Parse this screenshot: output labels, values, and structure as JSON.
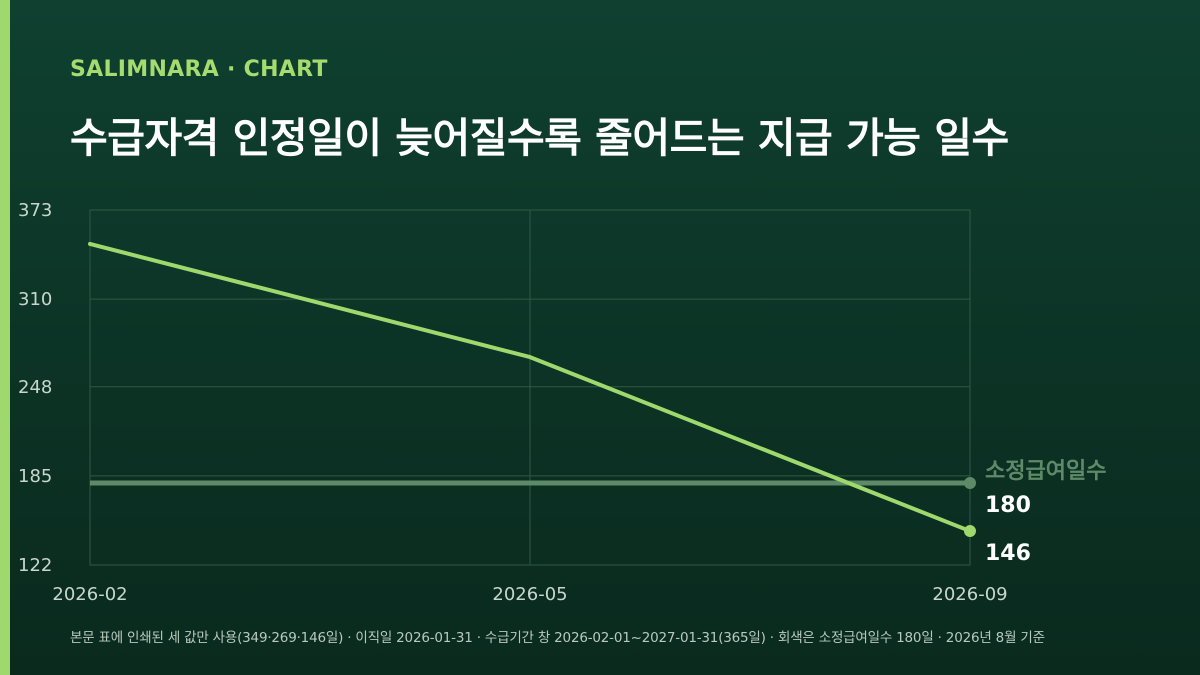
{
  "header": {
    "brand": "SALIMNARA · CHART",
    "title": "수급자격 인정일이 늦어질수록 줄어드는 지급 가능 일수"
  },
  "footnote": "본문 표에 인쇄된 세 값만 사용(349·269·146일) · 이직일 2026-01-31 · 수급기간 창 2026-02-01~2027-01-31(365일) · 회색은 소정급여일수 180일 · 2026년 8월 기준",
  "colors": {
    "accent": "#9fd86c",
    "series_line": "#9fd86c",
    "reference_line": "#5e8a68",
    "grid": "#2f5a44",
    "tick_text": "#c9d6cd"
  },
  "chart_data": {
    "type": "line",
    "x": [
      "2026-02",
      "2026-05",
      "2026-09"
    ],
    "yticks": [
      373,
      310,
      248,
      185,
      122
    ],
    "ylim": [
      122,
      373
    ],
    "grid": true,
    "series": [
      {
        "values": [
          349,
          269,
          146
        ],
        "end_label": "146"
      }
    ],
    "reference_line": {
      "name": "소정급여일수",
      "value": 180,
      "end_label": "180"
    }
  }
}
